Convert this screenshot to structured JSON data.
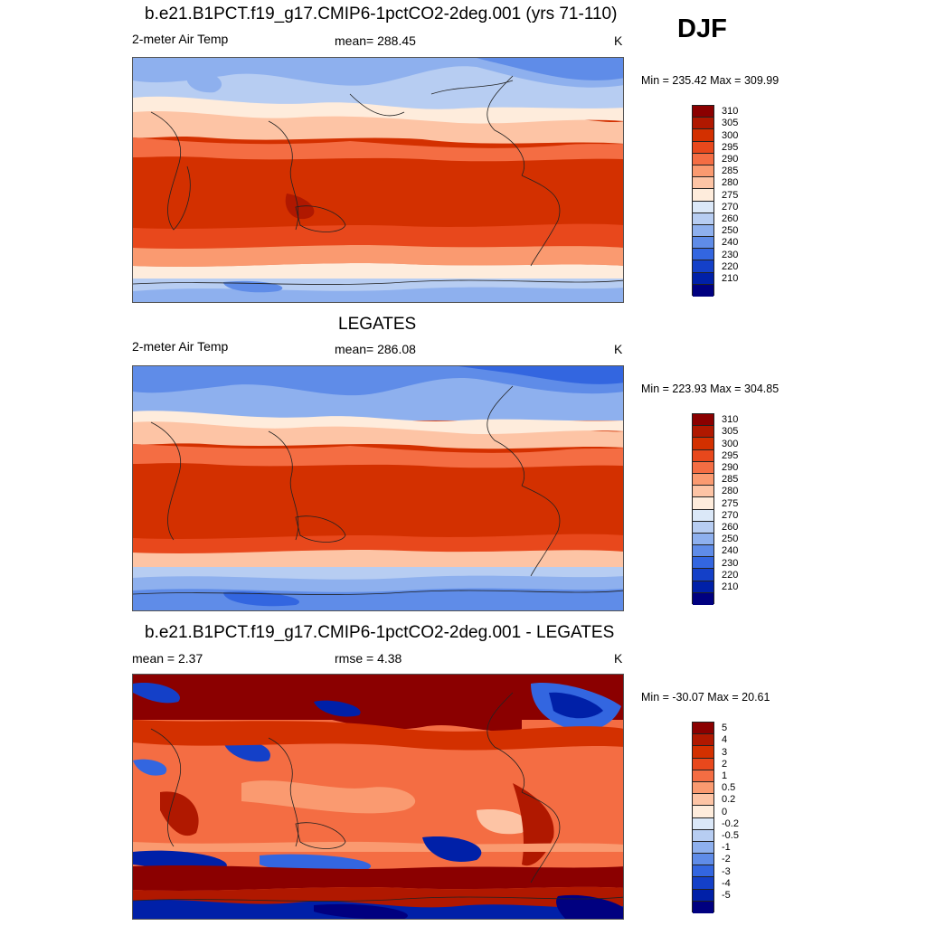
{
  "season": "DJF",
  "panels": [
    {
      "title": "b.e21.B1PCT.f19_g17.CMIP6-1pctCO2-2deg.001 (yrs 71-110)",
      "left_label": "2-meter Air Temp",
      "center_label": "mean= 288.45",
      "unit": "K",
      "minmax": "Min = 235.42 Max = 309.99",
      "map_name": "model-temperature-map"
    },
    {
      "title": "LEGATES",
      "left_label": "2-meter Air Temp",
      "center_label": "mean= 286.08",
      "unit": "K",
      "minmax": "Min = 223.93 Max = 304.85",
      "map_name": "obs-temperature-map"
    },
    {
      "title": "b.e21.B1PCT.f19_g17.CMIP6-1pctCO2-2deg.001 - LEGATES",
      "left_label": "mean =   2.37",
      "center_label": "rmse =   4.38",
      "unit": "K",
      "minmax": "Min = -30.07 Max =  20.61",
      "map_name": "difference-map"
    }
  ],
  "temp_colorbar": {
    "labels": [
      "310",
      "305",
      "300",
      "295",
      "290",
      "285",
      "280",
      "275",
      "270",
      "260",
      "250",
      "240",
      "230",
      "220",
      "210"
    ],
    "colors": [
      "#8b0000",
      "#b01800",
      "#d33000",
      "#e8481c",
      "#f46d43",
      "#fa9a70",
      "#fdc4a5",
      "#feecdc",
      "#dbe8f8",
      "#b7cdf2",
      "#8eb0ee",
      "#5f8ce8",
      "#3366e0",
      "#1440c8",
      "#0020a8",
      "#000080"
    ]
  },
  "diff_colorbar": {
    "labels": [
      "5",
      "4",
      "3",
      "2",
      "1",
      "0.5",
      "0.2",
      "0",
      "-0.2",
      "-0.5",
      "-1",
      "-2",
      "-3",
      "-4",
      "-5"
    ],
    "colors": [
      "#8b0000",
      "#b01800",
      "#d33000",
      "#e8481c",
      "#f46d43",
      "#fa9a70",
      "#fdc4a5",
      "#feecdc",
      "#dbe8f8",
      "#b7cdf2",
      "#8eb0ee",
      "#5f8ce8",
      "#3366e0",
      "#1440c8",
      "#0020a8",
      "#000080"
    ]
  }
}
